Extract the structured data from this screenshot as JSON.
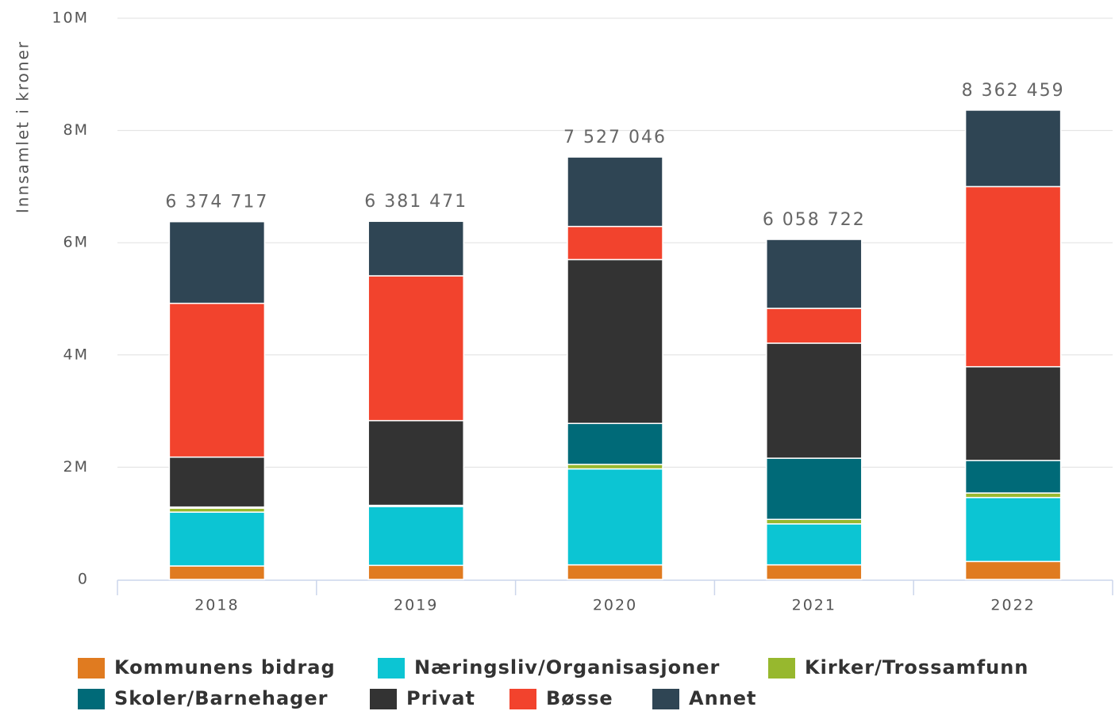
{
  "chart_data": {
    "type": "stacked_bar",
    "y_label": "Innsamlet i kroner",
    "categories": [
      "2018",
      "2019",
      "2020",
      "2021",
      "2022"
    ],
    "series": [
      {
        "name": "Kommunens bidrag",
        "color": "#e07b20",
        "values": [
          240000,
          250000,
          260000,
          260000,
          320000
        ]
      },
      {
        "name": "Næringsliv/Organisasjoner",
        "color": "#0cc5d3",
        "values": [
          960000,
          1050000,
          1710000,
          730000,
          1140000
        ]
      },
      {
        "name": "Kirker/Trossamfunn",
        "color": "#97b82e",
        "values": [
          70000,
          10000,
          80000,
          80000,
          80000
        ]
      },
      {
        "name": "Skoler/Barnehager",
        "color": "#006a78",
        "values": [
          20000,
          10000,
          730000,
          1090000,
          580000
        ]
      },
      {
        "name": "Privat",
        "color": "#333333",
        "values": [
          890000,
          1510000,
          2920000,
          2050000,
          1670000
        ]
      },
      {
        "name": "Bøsse",
        "color": "#f2432d",
        "values": [
          2740000,
          2580000,
          590000,
          620000,
          3210000
        ]
      },
      {
        "name": "Annet",
        "color": "#2f4554",
        "values": [
          1454717,
          971471,
          1237046,
          1228722,
          1362459
        ]
      }
    ],
    "totals": [
      6374717,
      6381471,
      7527046,
      6058722,
      8362459
    ],
    "total_labels": [
      "6 374 717",
      "6 381 471",
      "7 527 046",
      "6 058 722",
      "8 362 459"
    ],
    "ylim": [
      0,
      10000000
    ],
    "yticks": [
      0,
      {
        "value": 2000000,
        "label": "2M"
      },
      {
        "value": 4000000,
        "label": "4M"
      },
      {
        "value": 6000000,
        "label": "6M"
      },
      {
        "value": 8000000,
        "label": "8M"
      },
      {
        "value": 10000000,
        "label": "10M"
      }
    ],
    "grid": true
  }
}
